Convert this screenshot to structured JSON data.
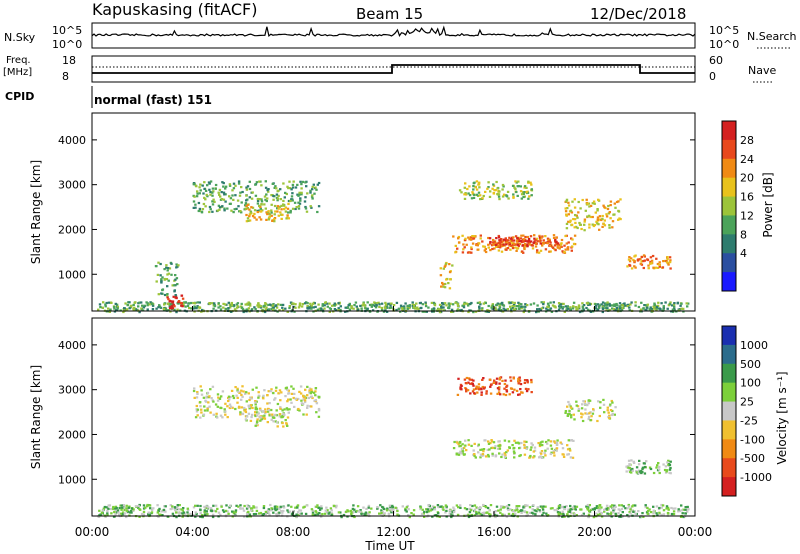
{
  "header": {
    "site": "Kapuskasing (fitACF)",
    "beam": "Beam 15",
    "date": "12/Dec/2018"
  },
  "noise_panel": {
    "left_label": "N.Sky",
    "right_label": "N.Search",
    "left_ticks": [
      "10^5",
      "10^0"
    ],
    "right_ticks": [
      "10^5",
      "10^0"
    ]
  },
  "freq_panel": {
    "left_label_line1": "Freq.",
    "left_label_line2": "[MHz]",
    "right_label": "Nave",
    "left_ticks": [
      "18",
      "8"
    ],
    "right_ticks": [
      "60",
      "0"
    ]
  },
  "cpid_panel": {
    "label": "CPID",
    "program": "normal (fast) 151"
  },
  "chart_data": [
    {
      "type": "heatmap",
      "name": "power",
      "ylabel": "Slant Range [km]",
      "yticks": [
        1000,
        2000,
        3000,
        4000
      ],
      "ylim": [
        180,
        4600
      ],
      "xlim": [
        0,
        24
      ],
      "colorbar_label": "Power [dB]",
      "colorbar_ticks": [
        "4",
        "8",
        "12",
        "16",
        "20",
        "24",
        "28"
      ],
      "colors": [
        "#1a1aff",
        "#2b4fa0",
        "#2e7c6e",
        "#4ba35a",
        "#9cc43a",
        "#e8c21c",
        "#f08a14",
        "#e8481c",
        "#d42020"
      ],
      "regions": [
        {
          "t0": 0.2,
          "t1": 23.7,
          "r0": 180,
          "r1": 400,
          "level": 3
        },
        {
          "t0": 2.9,
          "t1": 3.6,
          "r0": 250,
          "r1": 550,
          "level": 8
        },
        {
          "t0": 2.5,
          "t1": 3.4,
          "r0": 550,
          "r1": 1300,
          "level": 3
        },
        {
          "t0": 4.0,
          "t1": 9.0,
          "r0": 2400,
          "r1": 3100,
          "level": 3
        },
        {
          "t0": 6.0,
          "t1": 7.8,
          "r0": 2200,
          "r1": 2600,
          "level": 5
        },
        {
          "t0": 13.8,
          "t1": 14.3,
          "r0": 700,
          "r1": 1300,
          "level": 5
        },
        {
          "t0": 14.3,
          "t1": 19.2,
          "r0": 1500,
          "r1": 1900,
          "level": 6
        },
        {
          "t0": 15.6,
          "t1": 18.5,
          "r0": 1650,
          "r1": 1850,
          "level": 7
        },
        {
          "t0": 14.5,
          "t1": 17.5,
          "r0": 2700,
          "r1": 3100,
          "level": 4
        },
        {
          "t0": 18.8,
          "t1": 21.0,
          "r0": 2000,
          "r1": 2700,
          "level": 5
        },
        {
          "t0": 21.2,
          "t1": 23.0,
          "r0": 1150,
          "r1": 1450,
          "level": 6
        }
      ]
    },
    {
      "type": "heatmap",
      "name": "velocity",
      "ylabel": "Slant Range [km]",
      "yticks": [
        1000,
        2000,
        3000,
        4000
      ],
      "ylim": [
        180,
        4600
      ],
      "xlim": [
        0,
        24
      ],
      "xticks": [
        "00:00",
        "04:00",
        "08:00",
        "12:00",
        "16:00",
        "20:00",
        "00:00"
      ],
      "xlabel": "Time UT",
      "colorbar_label": "Velocity [m s⁻¹]",
      "colorbar_ticks": [
        "1000",
        "500",
        "100",
        "25",
        "-25",
        "-100",
        "-500",
        "-1000"
      ],
      "colors": [
        "#1a2fb0",
        "#2b6c8c",
        "#3a9a4a",
        "#7ccf3a",
        "#c8c8c8",
        "#f0c030",
        "#f08a14",
        "#e84a1c",
        "#d42020"
      ],
      "regions": [
        {
          "t0": 0.2,
          "t1": 23.7,
          "r0": 180,
          "r1": 450,
          "level": 3
        },
        {
          "t0": 4.0,
          "t1": 9.0,
          "r0": 2400,
          "r1": 3100,
          "level": 4
        },
        {
          "t0": 6.0,
          "t1": 7.8,
          "r0": 2200,
          "r1": 2600,
          "level": 4
        },
        {
          "t0": 14.3,
          "t1": 19.2,
          "r0": 1500,
          "r1": 1900,
          "level": 4
        },
        {
          "t0": 14.5,
          "t1": 17.5,
          "r0": 2900,
          "r1": 3300,
          "level": 7
        },
        {
          "t0": 18.8,
          "t1": 20.8,
          "r0": 2300,
          "r1": 2800,
          "level": 4
        },
        {
          "t0": 21.2,
          "t1": 23.0,
          "r0": 1150,
          "r1": 1450,
          "level": 3
        }
      ]
    }
  ]
}
